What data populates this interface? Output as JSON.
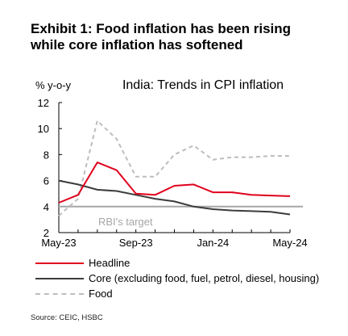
{
  "title_lines": [
    "Exhibit 1: Food inflation has been rising",
    "while core inflation has softened"
  ],
  "source": "Source: CEIC, HSBC",
  "colors": {
    "headline": "#e0001b",
    "core": "#3c3c3c",
    "food": "#bdbdbd",
    "target": "#a6a6a6"
  },
  "chart_data": {
    "type": "line",
    "title": "India: Trends in CPI inflation",
    "ylabel": "% y-o-y",
    "xlabel": "",
    "ylim": [
      2,
      12
    ],
    "yticks": [
      "12",
      "10",
      "8",
      "6",
      "4",
      "2"
    ],
    "xticks": [
      "May-23",
      "Sep-23",
      "Jan-24",
      "May-24"
    ],
    "x": [
      "May-23",
      "Jun-23",
      "Jul-23",
      "Aug-23",
      "Sep-23",
      "Oct-23",
      "Nov-23",
      "Dec-23",
      "Jan-24",
      "Feb-24",
      "Mar-24",
      "Apr-24",
      "May-24"
    ],
    "series": [
      {
        "name": "Headline",
        "values": [
          4.3,
          4.9,
          7.4,
          6.8,
          5.0,
          4.9,
          5.6,
          5.7,
          5.1,
          5.1,
          4.9,
          4.85,
          4.8
        ]
      },
      {
        "name": "Core (excluding food, fuel, petrol, diesel, housing)",
        "values": [
          6.0,
          5.7,
          5.3,
          5.2,
          4.9,
          4.6,
          4.4,
          4.0,
          3.8,
          3.7,
          3.65,
          3.6,
          3.4
        ]
      },
      {
        "name": "Food",
        "values": [
          3.3,
          4.6,
          10.6,
          9.2,
          6.3,
          6.3,
          8.0,
          8.7,
          7.6,
          7.8,
          7.8,
          7.9,
          7.9
        ]
      }
    ],
    "target": {
      "label": "RBI's target",
      "value": 4
    },
    "legend_position": "bottom",
    "grid": false
  }
}
